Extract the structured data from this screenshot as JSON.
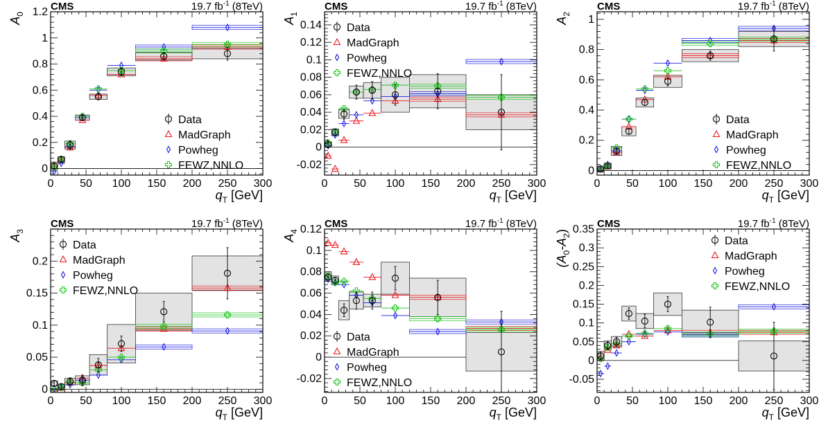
{
  "experiment_label": "CMS",
  "lumi_label": "19.7 fb",
  "lumi_sup": "-1",
  "energy_label": " (8TeV)",
  "x_label_main": "q",
  "x_label_sub": "T",
  "x_label_unit": " [GeV]",
  "legend": [
    {
      "name": "Data",
      "color": "#000000",
      "marker": "circle"
    },
    {
      "name": "MadGraph",
      "color": "#e8181e",
      "marker": "triangle"
    },
    {
      "name": "Powheg",
      "color": "#1c1ce0",
      "marker": "diamond"
    },
    {
      "name": "FEWZ,NNLO",
      "color": "#22c322",
      "marker": "cross"
    }
  ],
  "chart_data": [
    {
      "type": "scatter",
      "ylabel": "A",
      "ylabel_sub": "0",
      "xlim": [
        0,
        300
      ],
      "ylim": [
        -0.05,
        1.2
      ],
      "yticks": [
        0,
        0.2,
        0.4,
        0.6,
        0.8,
        1,
        1.2
      ],
      "ytick_labels": [
        "0",
        "0.2",
        "0.4",
        "0.6",
        "0.8",
        "1",
        "1.2"
      ],
      "legend_position": "right",
      "bins": [
        [
          0,
          10
        ],
        [
          10,
          20
        ],
        [
          20,
          35
        ],
        [
          35,
          55
        ],
        [
          55,
          80
        ],
        [
          80,
          120
        ],
        [
          120,
          200
        ],
        [
          200,
          300
        ]
      ],
      "x": [
        5,
        15,
        27.5,
        45,
        67.5,
        100,
        160,
        250
      ],
      "data_y": [
        0.02,
        0.07,
        0.18,
        0.39,
        0.55,
        0.74,
        0.86,
        0.88
      ],
      "data_err": [
        0.02,
        0.02,
        0.03,
        0.02,
        0.02,
        0.03,
        0.03,
        0.05
      ],
      "data_sys": [
        0.03,
        0.02,
        0.03,
        0.02,
        0.02,
        0.03,
        0.03,
        0.04
      ],
      "series": [
        {
          "name": "MadGraph",
          "values": [
            0.02,
            0.06,
            0.16,
            0.37,
            0.56,
            0.72,
            0.84,
            0.93
          ]
        },
        {
          "name": "Powheg",
          "values": [
            -0.02,
            0.04,
            0.17,
            0.39,
            0.6,
            0.79,
            0.93,
            1.08
          ]
        },
        {
          "name": "FEWZ,NNLO",
          "values": [
            0.01,
            0.07,
            0.19,
            0.4,
            0.61,
            0.75,
            0.9,
            0.95
          ]
        }
      ]
    },
    {
      "type": "scatter",
      "ylabel": "A",
      "ylabel_sub": "1",
      "xlim": [
        0,
        300
      ],
      "ylim": [
        -0.032,
        0.155
      ],
      "yticks": [
        -0.02,
        0,
        0.02,
        0.04,
        0.06,
        0.08,
        0.1,
        0.12,
        0.14
      ],
      "ytick_labels": [
        "-0.02",
        "0",
        "0.02",
        "0.04",
        "0.06",
        "0.08",
        "0.1",
        "0.12",
        "0.14"
      ],
      "legend_position": "top-left",
      "bins": [
        [
          0,
          10
        ],
        [
          10,
          20
        ],
        [
          20,
          35
        ],
        [
          35,
          55
        ],
        [
          55,
          80
        ],
        [
          80,
          120
        ],
        [
          120,
          200
        ],
        [
          200,
          300
        ]
      ],
      "x": [
        5,
        15,
        27.5,
        45,
        67.5,
        100,
        160,
        250
      ],
      "data_y": [
        0.003,
        0.017,
        0.038,
        0.063,
        0.065,
        0.06,
        0.064,
        0.04
      ],
      "data_err": [
        0.004,
        0.004,
        0.006,
        0.008,
        0.01,
        0.012,
        0.02,
        0.043
      ],
      "data_sys": [
        0.003,
        0.004,
        0.005,
        0.007,
        0.009,
        0.02,
        0.019,
        0.02
      ],
      "series": [
        {
          "name": "MadGraph",
          "values": [
            -0.01,
            -0.025,
            0.008,
            0.03,
            0.039,
            0.053,
            0.055,
            0.037
          ]
        },
        {
          "name": "Powheg",
          "values": [
            0.002,
            0.014,
            0.027,
            0.037,
            0.053,
            0.058,
            0.061,
            0.098
          ]
        },
        {
          "name": "FEWZ,NNLO",
          "values": [
            0.005,
            0.017,
            0.044,
            0.063,
            0.066,
            0.071,
            0.07,
            0.057
          ]
        }
      ]
    },
    {
      "type": "scatter",
      "ylabel": "A",
      "ylabel_sub": "2",
      "xlim": [
        0,
        300
      ],
      "ylim": [
        -0.03,
        1.05
      ],
      "yticks": [
        0,
        0.2,
        0.4,
        0.6,
        0.8,
        1
      ],
      "ytick_labels": [
        "0",
        "0.2",
        "0.4",
        "0.6",
        "0.8",
        "1"
      ],
      "legend_position": "bottom-right",
      "bins": [
        [
          0,
          10
        ],
        [
          10,
          20
        ],
        [
          20,
          35
        ],
        [
          35,
          55
        ],
        [
          55,
          80
        ],
        [
          80,
          120
        ],
        [
          120,
          200
        ],
        [
          200,
          300
        ]
      ],
      "x": [
        5,
        15,
        27.5,
        45,
        67.5,
        100,
        160,
        250
      ],
      "data_y": [
        0.01,
        0.03,
        0.13,
        0.26,
        0.45,
        0.59,
        0.76,
        0.87
      ],
      "data_err": [
        0.01,
        0.01,
        0.02,
        0.02,
        0.02,
        0.03,
        0.03,
        0.08
      ],
      "data_sys": [
        0.02,
        0.02,
        0.03,
        0.03,
        0.03,
        0.04,
        0.04,
        0.05
      ],
      "series": [
        {
          "name": "MadGraph",
          "values": [
            0.01,
            0.03,
            0.12,
            0.29,
            0.47,
            0.62,
            0.76,
            0.86
          ]
        },
        {
          "name": "Powheg",
          "values": [
            0.01,
            0.04,
            0.13,
            0.34,
            0.53,
            0.71,
            0.86,
            0.94
          ]
        },
        {
          "name": "FEWZ,NNLO",
          "values": [
            0.01,
            0.03,
            0.15,
            0.34,
            0.54,
            0.66,
            0.84,
            0.87
          ]
        }
      ]
    },
    {
      "type": "scatter",
      "ylabel": "A",
      "ylabel_sub": "3",
      "xlim": [
        0,
        300
      ],
      "ylim": [
        -0.005,
        0.25
      ],
      "yticks": [
        0,
        0.05,
        0.1,
        0.15,
        0.2
      ],
      "ytick_labels": [
        "0",
        "0.05",
        "0.1",
        "0.15",
        "0.2"
      ],
      "legend_position": "top-left",
      "bins": [
        [
          0,
          10
        ],
        [
          10,
          20
        ],
        [
          20,
          35
        ],
        [
          35,
          55
        ],
        [
          55,
          80
        ],
        [
          80,
          120
        ],
        [
          120,
          200
        ],
        [
          200,
          300
        ]
      ],
      "x": [
        5,
        15,
        27.5,
        45,
        67.5,
        100,
        160,
        250
      ],
      "data_y": [
        0.009,
        0.004,
        0.012,
        0.014,
        0.038,
        0.071,
        0.121,
        0.181
      ],
      "data_err": [
        0.004,
        0.004,
        0.006,
        0.008,
        0.01,
        0.012,
        0.016,
        0.04
      ],
      "data_sys": [
        0.004,
        0.004,
        0.005,
        0.007,
        0.016,
        0.03,
        0.029,
        0.027
      ],
      "series": [
        {
          "name": "MadGraph",
          "values": [
            0.001,
            0.002,
            0.01,
            0.017,
            0.037,
            0.064,
            0.094,
            0.158
          ]
        },
        {
          "name": "Powheg",
          "values": [
            0.001,
            0.003,
            0.007,
            0.014,
            0.022,
            0.046,
            0.066,
            0.091
          ]
        },
        {
          "name": "FEWZ,NNLO",
          "values": [
            0.0,
            0.003,
            0.011,
            0.01,
            0.03,
            0.05,
            0.098,
            0.116
          ]
        }
      ]
    },
    {
      "type": "scatter",
      "ylabel": "A",
      "ylabel_sub": "4",
      "xlim": [
        0,
        300
      ],
      "ylim": [
        -0.033,
        0.12
      ],
      "yticks": [
        -0.02,
        0,
        0.02,
        0.04,
        0.06,
        0.08,
        0.1,
        0.12
      ],
      "ytick_labels": [
        "-0.02",
        "0",
        "0.02",
        "0.04",
        "0.06",
        "0.08",
        "0.1",
        "0.12"
      ],
      "legend_position": "bottom-left",
      "bins": [
        [
          0,
          10
        ],
        [
          10,
          20
        ],
        [
          20,
          35
        ],
        [
          35,
          55
        ],
        [
          55,
          80
        ],
        [
          80,
          120
        ],
        [
          120,
          200
        ],
        [
          200,
          300
        ]
      ],
      "x": [
        5,
        15,
        27.5,
        45,
        67.5,
        100,
        160,
        250
      ],
      "data_y": [
        0.075,
        0.072,
        0.044,
        0.053,
        0.053,
        0.074,
        0.056,
        0.005
      ],
      "data_err": [
        0.003,
        0.003,
        0.006,
        0.008,
        0.008,
        0.011,
        0.016,
        0.038
      ],
      "data_sys": [
        0.004,
        0.004,
        0.009,
        0.008,
        0.006,
        0.015,
        0.018,
        0.018
      ],
      "series": [
        {
          "name": "MadGraph",
          "values": [
            0.107,
            0.105,
            0.099,
            0.089,
            0.075,
            0.058,
            0.056,
            0.027
          ]
        },
        {
          "name": "Powheg",
          "values": [
            0.073,
            0.07,
            0.068,
            0.058,
            0.051,
            0.039,
            0.024,
            0.033
          ]
        },
        {
          "name": "FEWZ,NNLO",
          "values": [
            0.076,
            0.07,
            0.071,
            0.062,
            0.055,
            0.046,
            0.036,
            0.026
          ]
        }
      ]
    },
    {
      "type": "scatter",
      "ylabel": "(A",
      "ylabel_sub": "0",
      "ylabel_mid": "-A",
      "ylabel_sub2": "2",
      "ylabel_end": ")",
      "xlim": [
        0,
        300
      ],
      "ylim": [
        -0.085,
        0.35
      ],
      "yticks": [
        -0.05,
        0,
        0.05,
        0.1,
        0.15,
        0.2,
        0.25,
        0.3,
        0.35
      ],
      "ytick_labels": [
        "-0.05",
        "0",
        "0.05",
        "0.1",
        "0.15",
        "0.2",
        "0.25",
        "0.3",
        "0.35"
      ],
      "legend_position": "top-right",
      "bins": [
        [
          0,
          10
        ],
        [
          10,
          20
        ],
        [
          20,
          35
        ],
        [
          35,
          55
        ],
        [
          55,
          80
        ],
        [
          80,
          120
        ],
        [
          120,
          200
        ],
        [
          200,
          300
        ]
      ],
      "x": [
        5,
        15,
        27.5,
        45,
        67.5,
        100,
        160,
        250
      ],
      "data_y": [
        0.012,
        0.04,
        0.05,
        0.125,
        0.105,
        0.15,
        0.102,
        0.012
      ],
      "data_err": [
        0.01,
        0.01,
        0.012,
        0.015,
        0.018,
        0.02,
        0.04,
        0.09
      ],
      "data_sys": [
        0.012,
        0.012,
        0.014,
        0.02,
        0.02,
        0.03,
        0.032,
        0.04
      ],
      "series": [
        {
          "name": "MadGraph",
          "values": [
            0.008,
            0.028,
            0.04,
            0.07,
            0.065,
            0.08,
            0.075,
            0.075
          ]
        },
        {
          "name": "Powheg",
          "values": [
            -0.035,
            -0.015,
            0.02,
            0.05,
            0.07,
            0.076,
            0.068,
            0.143
          ]
        },
        {
          "name": "FEWZ,NNLO",
          "values": [
            0.005,
            0.035,
            0.045,
            0.065,
            0.072,
            0.085,
            0.07,
            0.078
          ]
        }
      ]
    }
  ]
}
